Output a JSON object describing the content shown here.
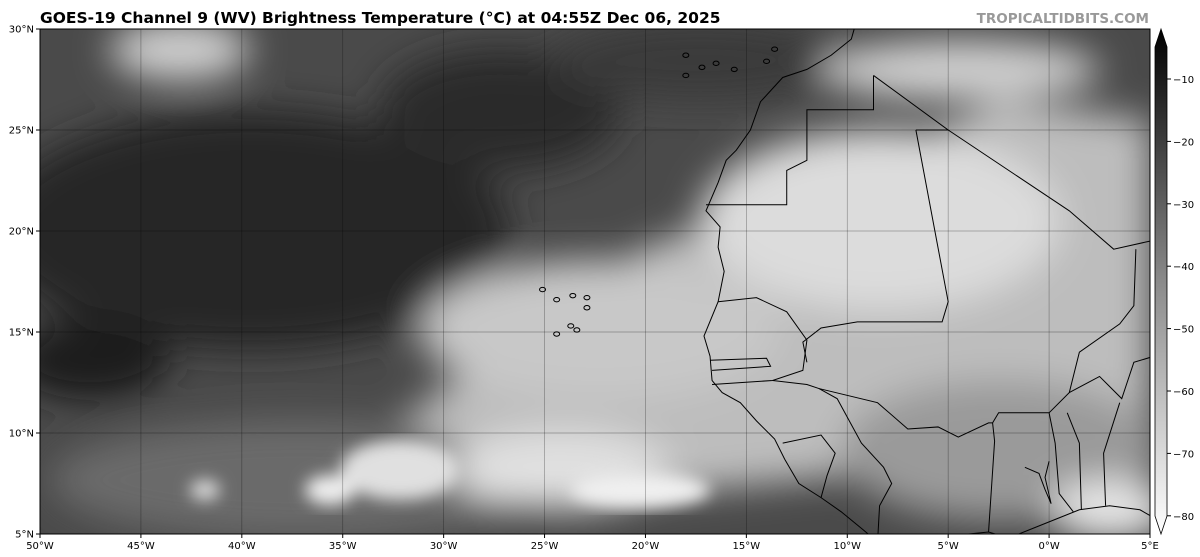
{
  "header": {
    "title": "GOES-19 Channel 9 (WV) Brightness Temperature (°C) at 04:55Z Dec 06, 2025",
    "credit": "TROPICALTIDBITS.COM"
  },
  "map": {
    "projection": "equirectangular",
    "lon_range": [
      -50,
      5
    ],
    "lat_range": [
      5,
      30
    ],
    "grid": true,
    "lon_ticks": [
      "50°W",
      "45°W",
      "40°W",
      "35°W",
      "30°W",
      "25°W",
      "20°W",
      "15°W",
      "10°W",
      "5°W",
      "0°W",
      "5°E"
    ],
    "lat_ticks": [
      "5°N",
      "10°N",
      "15°N",
      "20°N",
      "25°N",
      "30°N"
    ],
    "region": "Eastern tropical Atlantic and West Africa"
  },
  "colorbar": {
    "label_units": "°C",
    "colormap": "grayscale (warm dark, cold white)",
    "range": [
      -80,
      -5
    ],
    "extend": "both",
    "ticks": [
      "−10",
      "−20",
      "−30",
      "−40",
      "−50",
      "−60",
      "−70",
      "−80"
    ],
    "colors": {
      "warm": "#000000",
      "cold": "#ffffff"
    }
  }
}
